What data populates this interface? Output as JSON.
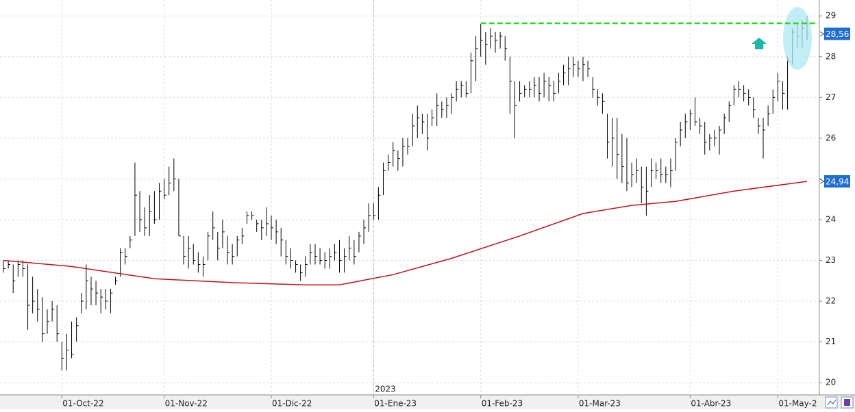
{
  "chart_data": {
    "type": "ohlc",
    "ylim": [
      19.7,
      29.39
    ],
    "yticks": [
      20,
      21,
      22,
      23,
      24,
      25,
      26,
      27,
      28,
      29
    ],
    "xticks": [
      {
        "value": "2022-10-01",
        "label": "01-Oct-22"
      },
      {
        "value": "2022-11-01",
        "label": "01-Nov-22"
      },
      {
        "value": "2022-12-01",
        "label": "01-Dic-22"
      },
      {
        "value": "2023-01-01",
        "label": "01-Ene-23"
      },
      {
        "value": "2023-02-01",
        "label": "01-Feb-23"
      },
      {
        "value": "2023-03-01",
        "label": "01-Mar-23"
      },
      {
        "value": "2023-04-01",
        "label": "01-Abr-23"
      },
      {
        "value": "2023-05-01",
        "label": "01-May-2"
      }
    ],
    "year_marker": {
      "value": "2023-01-01",
      "label": "2023"
    },
    "grid": true,
    "bars": {
      "color": "#000000",
      "x": [
        "2022-09-15",
        "2022-09-16",
        "2022-09-19",
        "2022-09-20",
        "2022-09-21",
        "2022-09-22",
        "2022-09-23",
        "2022-09-26",
        "2022-09-27",
        "2022-09-28",
        "2022-09-29",
        "2022-09-30",
        "2022-10-03",
        "2022-10-04",
        "2022-10-05",
        "2022-10-06",
        "2022-10-07",
        "2022-10-10",
        "2022-10-11",
        "2022-10-12",
        "2022-10-13",
        "2022-10-14",
        "2022-10-17",
        "2022-10-18",
        "2022-10-19",
        "2022-10-20",
        "2022-10-21",
        "2022-10-24",
        "2022-10-25",
        "2022-10-26",
        "2022-10-27",
        "2022-10-28",
        "2022-10-31",
        "2022-11-01",
        "2022-11-02",
        "2022-11-03",
        "2022-11-04",
        "2022-11-07",
        "2022-11-08",
        "2022-11-09",
        "2022-11-10",
        "2022-11-11",
        "2022-11-14",
        "2022-11-15",
        "2022-11-16",
        "2022-11-17",
        "2022-11-18",
        "2022-11-21",
        "2022-11-22",
        "2022-11-23",
        "2022-11-24",
        "2022-11-25",
        "2022-11-28",
        "2022-11-29",
        "2022-11-30",
        "2022-12-01",
        "2022-12-02",
        "2022-12-05",
        "2022-12-06",
        "2022-12-07",
        "2022-12-08",
        "2022-12-09",
        "2022-12-12",
        "2022-12-13",
        "2022-12-14",
        "2022-12-15",
        "2022-12-16",
        "2022-12-19",
        "2022-12-20",
        "2022-12-21",
        "2022-12-22",
        "2022-12-23",
        "2022-12-27",
        "2022-12-28",
        "2022-12-29",
        "2022-12-30",
        "2023-01-02",
        "2023-01-03",
        "2023-01-04",
        "2023-01-05",
        "2023-01-06",
        "2023-01-09",
        "2023-01-10",
        "2023-01-11",
        "2023-01-12",
        "2023-01-13",
        "2023-01-16",
        "2023-01-17",
        "2023-01-18",
        "2023-01-19",
        "2023-01-20",
        "2023-01-23",
        "2023-01-24",
        "2023-01-25",
        "2023-01-26",
        "2023-01-27",
        "2023-01-30",
        "2023-01-31",
        "2023-02-01",
        "2023-02-02",
        "2023-02-03",
        "2023-02-06",
        "2023-02-07",
        "2023-02-08",
        "2023-02-09",
        "2023-02-10",
        "2023-02-13",
        "2023-02-14",
        "2023-02-15",
        "2023-02-16",
        "2023-02-17",
        "2023-02-20",
        "2023-02-21",
        "2023-02-22",
        "2023-02-23",
        "2023-02-24",
        "2023-02-27",
        "2023-02-28",
        "2023-03-01",
        "2023-03-02",
        "2023-03-03",
        "2023-03-06",
        "2023-03-07",
        "2023-03-08",
        "2023-03-09",
        "2023-03-10",
        "2023-03-13",
        "2023-03-14",
        "2023-03-15",
        "2023-03-16",
        "2023-03-17",
        "2023-03-20",
        "2023-03-21",
        "2023-03-22",
        "2023-03-23",
        "2023-03-24",
        "2023-03-27",
        "2023-03-28",
        "2023-03-29",
        "2023-03-30",
        "2023-03-31",
        "2023-04-03",
        "2023-04-04",
        "2023-04-05",
        "2023-04-06",
        "2023-04-11",
        "2023-04-12",
        "2023-04-13",
        "2023-04-14",
        "2023-04-17",
        "2023-04-18",
        "2023-04-19",
        "2023-04-20",
        "2023-04-21",
        "2023-04-24",
        "2023-04-25",
        "2023-04-26",
        "2023-04-27",
        "2023-04-28",
        "2023-05-02",
        "2023-05-03",
        "2023-05-04",
        "2023-05-05",
        "2023-05-08",
        "2023-05-09",
        "2023-05-10"
      ],
      "high": [
        23.0,
        23.0,
        22.9,
        23.0,
        23.0,
        22.9,
        22.6,
        22.3,
        22.1,
        21.8,
        22.0,
        21.9,
        21.0,
        21.2,
        21.5,
        21.6,
        22.2,
        22.9,
        22.6,
        22.5,
        22.3,
        22.3,
        22.3,
        22.6,
        23.3,
        23.3,
        23.6,
        25.4,
        24.7,
        24.3,
        24.6,
        24.7,
        24.9,
        25.0,
        25.3,
        25.5,
        25.0,
        23.6,
        23.6,
        23.4,
        23.2,
        23.1,
        23.7,
        24.2,
        23.7,
        24.0,
        23.6,
        23.4,
        23.6,
        23.8,
        24.2,
        24.2,
        24.0,
        24.0,
        24.3,
        24.1,
        24.0,
        23.8,
        23.5,
        23.3,
        23.0,
        22.9,
        23.1,
        23.4,
        23.4,
        23.3,
        23.2,
        23.3,
        23.4,
        23.5,
        23.3,
        23.6,
        23.5,
        23.7,
        24.0,
        24.4,
        24.4,
        24.8,
        25.4,
        25.6,
        25.9,
        25.7,
        26.0,
        26.0,
        26.6,
        26.8,
        26.6,
        26.6,
        26.7,
        27.1,
        26.9,
        27.0,
        27.1,
        27.4,
        27.4,
        27.4,
        28.1,
        28.5,
        28.8,
        28.6,
        28.7,
        28.6,
        28.6,
        28.5,
        28.0,
        27.4,
        27.4,
        27.3,
        27.4,
        27.5,
        27.5,
        27.6,
        27.5,
        27.4,
        27.6,
        27.8,
        28.0,
        28.0,
        27.9,
        28.0,
        27.9,
        27.5,
        27.2,
        27.1,
        26.6,
        26.5,
        26.5,
        26.1,
        26.0,
        25.4,
        25.5,
        25.3,
        25.3,
        25.5,
        25.4,
        25.5,
        25.3,
        25.5,
        26.0,
        26.4,
        26.6,
        26.7,
        27.0,
        26.5,
        26.4,
        26.1,
        26.2,
        26.3,
        26.6,
        26.9,
        27.3,
        27.4,
        27.3,
        27.2,
        27.0,
        26.5,
        26.5,
        26.8,
        27.2,
        27.6,
        27.4,
        28.0,
        28.7,
        28.8,
        28.9,
        29.0
      ],
      "low": [
        22.7,
        22.8,
        22.2,
        22.6,
        22.6,
        21.3,
        21.7,
        21.5,
        21.0,
        21.2,
        21.5,
        21.0,
        20.3,
        20.3,
        20.6,
        21.0,
        21.7,
        21.8,
        21.9,
        21.9,
        21.7,
        21.8,
        21.7,
        22.4,
        22.6,
        22.9,
        23.3,
        23.6,
        23.7,
        23.6,
        23.6,
        23.9,
        24.0,
        24.5,
        24.6,
        24.7,
        23.6,
        22.9,
        22.8,
        22.9,
        22.7,
        22.6,
        23.0,
        23.5,
        23.0,
        23.3,
        22.9,
        22.9,
        23.1,
        23.4,
        23.9,
        24.0,
        23.7,
        23.5,
        23.6,
        23.5,
        23.4,
        23.1,
        22.9,
        22.8,
        22.7,
        22.5,
        22.6,
        22.9,
        22.9,
        22.9,
        22.8,
        22.8,
        23.0,
        22.7,
        22.7,
        23.0,
        22.9,
        23.2,
        23.4,
        23.7,
        24.0,
        24.0,
        24.6,
        25.2,
        25.3,
        25.2,
        25.3,
        25.6,
        25.8,
        26.0,
        26.1,
        25.7,
        26.3,
        26.3,
        26.5,
        26.5,
        26.6,
        26.9,
        27.0,
        27.0,
        27.1,
        27.4,
        28.0,
        27.8,
        28.2,
        28.1,
        28.2,
        27.9,
        26.6,
        26.0,
        26.9,
        27.0,
        27.0,
        27.0,
        26.9,
        27.0,
        26.9,
        26.9,
        27.1,
        27.3,
        27.3,
        27.5,
        27.5,
        27.4,
        27.5,
        27.0,
        26.8,
        26.6,
        25.5,
        25.3,
        25.0,
        24.9,
        24.7,
        24.8,
        24.9,
        24.4,
        24.1,
        24.8,
        25.0,
        24.9,
        24.9,
        24.8,
        25.2,
        25.8,
        26.0,
        26.2,
        26.3,
        26.1,
        25.6,
        25.7,
        25.8,
        25.6,
        26.1,
        26.4,
        26.8,
        27.0,
        26.9,
        26.8,
        26.5,
        26.1,
        25.5,
        26.3,
        26.6,
        26.9,
        26.7,
        26.7,
        27.8,
        28.2,
        28.2,
        28.4
      ],
      "close": [
        22.8,
        22.9,
        22.5,
        22.9,
        22.8,
        21.9,
        22.0,
        21.8,
        21.2,
        21.5,
        21.8,
        21.2,
        20.6,
        20.8,
        20.7,
        21.4,
        22.0,
        22.5,
        22.3,
        22.2,
        22.1,
        22.0,
        22.2,
        22.5,
        23.2,
        23.1,
        23.5,
        24.6,
        24.0,
        23.8,
        24.2,
        24.0,
        24.7,
        24.6,
        24.9,
        25.0,
        23.6,
        23.1,
        23.3,
        23.0,
        22.9,
        22.9,
        23.6,
        23.8,
        23.3,
        23.7,
        23.2,
        23.1,
        23.5,
        23.6,
        24.1,
        24.1,
        23.9,
        23.8,
        23.9,
        23.8,
        23.7,
        23.5,
        23.1,
        23.0,
        22.9,
        22.7,
        22.9,
        23.2,
        23.1,
        23.0,
        23.0,
        23.1,
        23.2,
        23.0,
        23.1,
        23.3,
        23.1,
        23.6,
        23.8,
        24.1,
        24.1,
        24.6,
        25.2,
        25.4,
        25.7,
        25.5,
        25.8,
        25.8,
        26.3,
        26.5,
        26.4,
        26.0,
        26.5,
        26.8,
        26.7,
        26.8,
        27.0,
        27.2,
        27.3,
        27.1,
        27.9,
        28.2,
        28.4,
        28.3,
        28.5,
        28.4,
        28.5,
        28.2,
        27.4,
        26.8,
        27.1,
        27.2,
        27.2,
        27.3,
        27.1,
        27.4,
        27.3,
        27.1,
        27.4,
        27.6,
        27.7,
        27.8,
        27.7,
        27.8,
        27.7,
        27.2,
        27.0,
        26.9,
        25.9,
        26.0,
        25.6,
        25.3,
        24.9,
        25.1,
        25.2,
        24.8,
        24.7,
        25.2,
        25.2,
        25.1,
        25.1,
        25.2,
        25.9,
        26.2,
        26.4,
        26.6,
        26.4,
        26.3,
        25.9,
        26.0,
        26.0,
        26.2,
        26.5,
        26.8,
        27.2,
        27.2,
        27.1,
        27.0,
        26.7,
        26.3,
        26.2,
        26.6,
        27.0,
        27.4,
        27.1,
        27.9,
        28.6,
        28.5,
        28.7,
        28.56
      ]
    },
    "ma": {
      "color": "#c0121c",
      "x": [
        "2022-09-15",
        "2022-10-05",
        "2022-10-28",
        "2022-11-22",
        "2022-12-12",
        "2022-12-21",
        "2023-01-06",
        "2023-01-24",
        "2023-02-13",
        "2023-03-02",
        "2023-03-16",
        "2023-03-29",
        "2023-04-18",
        "2023-05-10"
      ],
      "values": [
        23.0,
        22.85,
        22.55,
        22.45,
        22.4,
        22.4,
        22.65,
        23.05,
        23.6,
        24.15,
        24.35,
        24.45,
        24.7,
        24.94
      ]
    },
    "resistance": {
      "value": 28.82,
      "from": "2023-02-01",
      "color": "#22dd22"
    },
    "price_labels": {
      "values": [
        28.56,
        24.94
      ],
      "value_labels": [
        "28,56",
        "24,94"
      ],
      "color": "#1e6fd0"
    }
  }
}
